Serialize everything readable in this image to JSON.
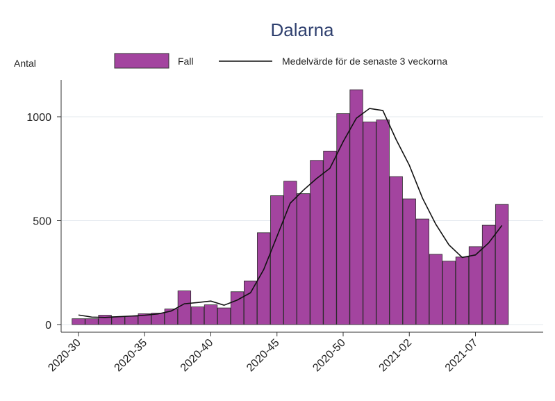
{
  "chart_data": {
    "type": "bar",
    "title": "Dalarna",
    "ylabel": "Antal",
    "xlabel": "",
    "ylim": [
      0,
      1150
    ],
    "yticks": [
      0,
      500,
      1000
    ],
    "grid": true,
    "legend_position": "top",
    "categories": [
      "2020-30",
      "2020-31",
      "2020-32",
      "2020-33",
      "2020-34",
      "2020-35",
      "2020-36",
      "2020-37",
      "2020-38",
      "2020-39",
      "2020-40",
      "2020-41",
      "2020-42",
      "2020-43",
      "2020-44",
      "2020-45",
      "2020-46",
      "2020-47",
      "2020-48",
      "2020-49",
      "2020-50",
      "2020-51",
      "2020-52",
      "2020-53",
      "2021-01",
      "2021-02",
      "2021-03",
      "2021-04",
      "2021-05",
      "2021-06",
      "2021-07",
      "2021-08",
      "2021-09"
    ],
    "xtick_labels": [
      "2020-30",
      "2020-35",
      "2020-40",
      "2020-45",
      "2020-50",
      "2021-02",
      "2021-07"
    ],
    "series": [
      {
        "name": "Fall",
        "kind": "bar",
        "color": "#a3449f",
        "values": [
          28,
          28,
          45,
          38,
          40,
          52,
          55,
          75,
          162,
          85,
          95,
          80,
          158,
          210,
          442,
          620,
          690,
          630,
          790,
          835,
          1015,
          1130,
          975,
          985,
          712,
          605,
          508,
          338,
          305,
          325,
          375,
          478,
          578
        ]
      },
      {
        "name": "Medelvärde för de senaste 3 veckorna",
        "kind": "line",
        "color": "#111111",
        "values": [
          46,
          36,
          34,
          38,
          41,
          45,
          51,
          65,
          100,
          106,
          113,
          93,
          118,
          153,
          265,
          424,
          584,
          647,
          703,
          752,
          880,
          993,
          1040,
          1030,
          891,
          767,
          608,
          483,
          383,
          323,
          335,
          393,
          477
        ]
      }
    ]
  }
}
